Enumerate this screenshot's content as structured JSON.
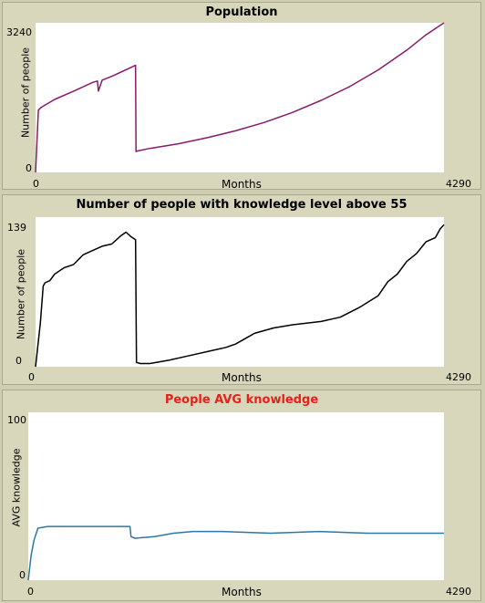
{
  "chart_data": [
    {
      "type": "line",
      "title": "Population",
      "title_color": "#000000",
      "xlabel": "Months",
      "ylabel": "Number of people",
      "xlim": [
        0,
        4290
      ],
      "ylim": [
        0,
        3240
      ],
      "x_ticks": [
        "0",
        "4290"
      ],
      "y_ticks": [
        "0",
        "3240"
      ],
      "series": [
        {
          "color": "#8b1a6b",
          "x": [
            0,
            30,
            60,
            200,
            400,
            600,
            650,
            660,
            700,
            800,
            1000,
            1050,
            1055,
            1060,
            1070,
            1200,
            1500,
            1800,
            2100,
            2400,
            2700,
            3000,
            3300,
            3600,
            3900,
            4100,
            4290
          ],
          "y": [
            0,
            1350,
            1410,
            1580,
            1760,
            1950,
            1980,
            1760,
            2000,
            2080,
            2270,
            2320,
            450,
            460,
            465,
            520,
            620,
            750,
            900,
            1080,
            1300,
            1560,
            1860,
            2220,
            2650,
            2980,
            3240
          ]
        }
      ]
    },
    {
      "type": "line",
      "title": "Number of people with knowledge level above 55",
      "title_color": "#000000",
      "xlabel": "Months",
      "ylabel": "Number of people",
      "xlim": [
        0,
        4290
      ],
      "ylim": [
        0,
        139
      ],
      "x_ticks": [
        "0",
        "4290"
      ],
      "y_ticks": [
        "0",
        "139"
      ],
      "series": [
        {
          "color": "#000000",
          "x": [
            0,
            50,
            80,
            100,
            150,
            200,
            300,
            400,
            500,
            600,
            700,
            800,
            900,
            950,
            1000,
            1050,
            1060,
            1100,
            1200,
            1400,
            1600,
            1800,
            2000,
            2100,
            2200,
            2300,
            2500,
            2700,
            3000,
            3200,
            3400,
            3600,
            3700,
            3800,
            3900,
            4000,
            4100,
            4200,
            4250,
            4290
          ],
          "y": [
            0,
            40,
            75,
            78,
            80,
            86,
            92,
            95,
            104,
            108,
            112,
            114,
            122,
            125,
            121,
            118,
            4,
            3,
            3,
            6,
            10,
            14,
            18,
            21,
            26,
            31,
            36,
            39,
            42,
            46,
            55,
            66,
            79,
            86,
            98,
            105,
            116,
            120,
            128,
            132
          ]
        }
      ]
    },
    {
      "type": "line",
      "title": "People AVG knowledge",
      "title_color": "#e8201c",
      "xlabel": "Months",
      "ylabel": "AVG knowledge",
      "xlim": [
        0,
        4290
      ],
      "ylim": [
        0,
        100
      ],
      "x_ticks": [
        "0",
        "4290"
      ],
      "y_ticks": [
        "0",
        "100"
      ],
      "series": [
        {
          "color": "#2a78a8",
          "x": [
            0,
            30,
            60,
            100,
            200,
            400,
            600,
            800,
            1000,
            1050,
            1060,
            1100,
            1300,
            1500,
            1700,
            2000,
            2500,
            3000,
            3500,
            4000,
            4290
          ],
          "y": [
            0,
            15,
            24,
            31,
            32,
            32,
            32,
            32,
            32,
            32,
            26,
            25,
            26,
            28,
            29,
            29,
            28,
            29,
            28,
            28,
            28
          ]
        }
      ]
    }
  ]
}
